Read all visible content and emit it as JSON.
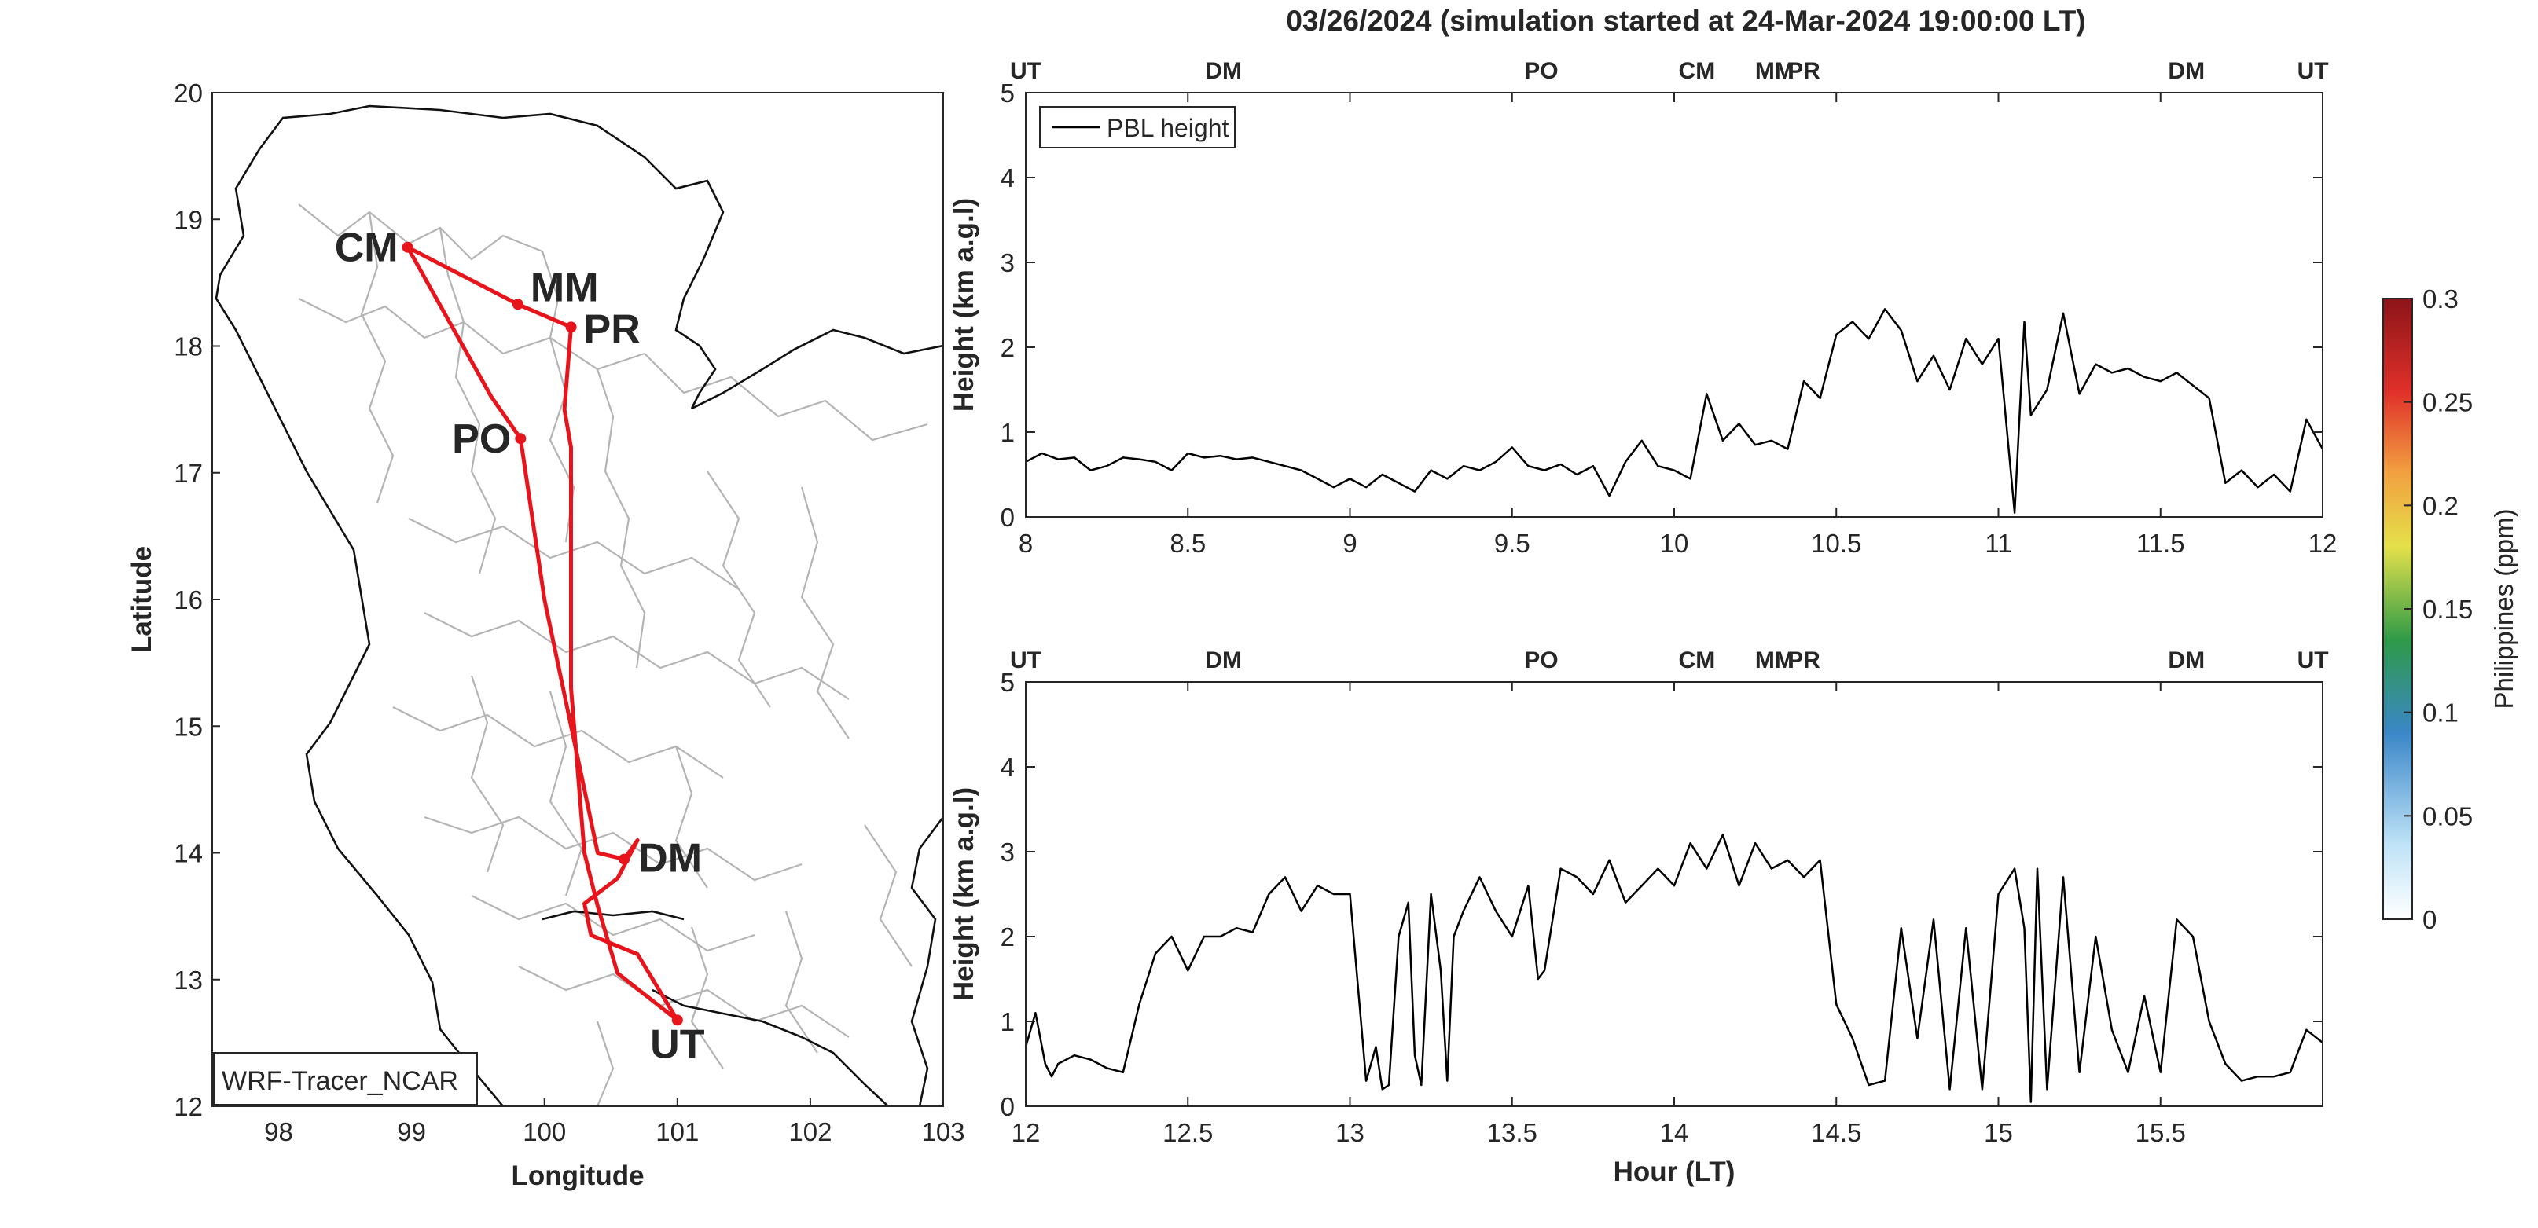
{
  "title": "03/26/2024 (simulation started at 24-Mar-2024 19:00:00 LT)",
  "colors": {
    "route": "#e8141b",
    "UT": "#111111",
    "DM": "#4db8e6",
    "PO": "#77ac30",
    "CM": "#d95319",
    "MM": "#edb120",
    "PR": "#7e2f8e",
    "pbl_line": "#000000",
    "border": "#111111",
    "province_border": "#b0b0b0"
  },
  "icons": {
    "legend_line": "line-icon",
    "map_marker": "circle-dot-icon"
  },
  "chart_data": [
    {
      "type": "map",
      "xlabel": "Longitude",
      "ylabel": "Latitude",
      "xlim": [
        97.5,
        103
      ],
      "ylim": [
        12,
        20
      ],
      "xticks": [
        "98",
        "99",
        "100",
        "101",
        "102",
        "103"
      ],
      "yticks": [
        "12",
        "13",
        "14",
        "15",
        "16",
        "17",
        "18",
        "19",
        "20"
      ],
      "label_box": "WRF-Tracer_NCAR",
      "sites": [
        {
          "name": "CM",
          "lon": 98.97,
          "lat": 18.78
        },
        {
          "name": "MM",
          "lon": 99.8,
          "lat": 18.33
        },
        {
          "name": "PR",
          "lon": 100.2,
          "lat": 18.15
        },
        {
          "name": "PO",
          "lon": 99.82,
          "lat": 17.27
        },
        {
          "name": "DM",
          "lon": 100.6,
          "lat": 13.95
        },
        {
          "name": "UT",
          "lon": 101.0,
          "lat": 12.68
        }
      ],
      "route": [
        {
          "lon": 101.0,
          "lat": 12.68
        },
        {
          "lon": 100.55,
          "lat": 13.05
        },
        {
          "lon": 100.4,
          "lat": 13.58
        },
        {
          "lon": 100.3,
          "lat": 14.0
        },
        {
          "lon": 100.2,
          "lat": 15.3
        },
        {
          "lon": 100.2,
          "lat": 16.5
        },
        {
          "lon": 100.2,
          "lat": 17.2
        },
        {
          "lon": 100.15,
          "lat": 17.5
        },
        {
          "lon": 100.2,
          "lat": 18.15
        },
        {
          "lon": 99.8,
          "lat": 18.33
        },
        {
          "lon": 98.97,
          "lat": 18.78
        },
        {
          "lon": 99.6,
          "lat": 17.6
        },
        {
          "lon": 99.82,
          "lat": 17.27
        },
        {
          "lon": 100.0,
          "lat": 16.0
        },
        {
          "lon": 100.3,
          "lat": 14.5
        },
        {
          "lon": 100.4,
          "lat": 14.0
        },
        {
          "lon": 100.6,
          "lat": 13.95
        },
        {
          "lon": 100.7,
          "lat": 14.1
        },
        {
          "lon": 100.55,
          "lat": 13.8
        },
        {
          "lon": 100.3,
          "lat": 13.6
        },
        {
          "lon": 100.35,
          "lat": 13.35
        },
        {
          "lon": 100.7,
          "lat": 13.2
        },
        {
          "lon": 101.0,
          "lat": 12.68
        }
      ]
    },
    {
      "type": "line",
      "ylabel": "Height (km a.g.l)",
      "xlim": [
        8,
        12
      ],
      "ylim": [
        0,
        5
      ],
      "xticks": [
        "8",
        "8.5",
        "9",
        "9.5",
        "10",
        "10.5",
        "11",
        "11.5",
        "12"
      ],
      "yticks": [
        "0",
        "1",
        "2",
        "3",
        "4",
        "5"
      ],
      "legend": "PBL height",
      "legend_position": "top-left",
      "top_labels": [
        {
          "text": "UT",
          "x": 8.0
        },
        {
          "text": "DM",
          "x": 8.61
        },
        {
          "text": "PO",
          "x": 9.59
        },
        {
          "text": "CM",
          "x": 10.07
        },
        {
          "text": "MM",
          "x": 10.31
        },
        {
          "text": "PR",
          "x": 10.4
        },
        {
          "text": "DM",
          "x": 11.58
        },
        {
          "text": "UT",
          "x": 11.97
        }
      ],
      "series": [
        {
          "name": "PBL height",
          "x": [
            8.0,
            8.05,
            8.1,
            8.15,
            8.2,
            8.25,
            8.3,
            8.35,
            8.4,
            8.45,
            8.5,
            8.55,
            8.6,
            8.65,
            8.7,
            8.75,
            8.8,
            8.85,
            8.9,
            8.95,
            9.0,
            9.05,
            9.1,
            9.15,
            9.2,
            9.25,
            9.3,
            9.35,
            9.4,
            9.45,
            9.5,
            9.55,
            9.6,
            9.65,
            9.7,
            9.75,
            9.8,
            9.85,
            9.9,
            9.95,
            10.0,
            10.05,
            10.1,
            10.15,
            10.2,
            10.25,
            10.3,
            10.35,
            10.4,
            10.45,
            10.5,
            10.55,
            10.6,
            10.65,
            10.7,
            10.75,
            10.8,
            10.85,
            10.9,
            10.95,
            11.0,
            11.05,
            11.08,
            11.1,
            11.15,
            11.2,
            11.25,
            11.3,
            11.35,
            11.4,
            11.45,
            11.5,
            11.55,
            11.6,
            11.65,
            11.7,
            11.75,
            11.8,
            11.85,
            11.9,
            11.95,
            12.0
          ],
          "values": [
            0.65,
            0.75,
            0.68,
            0.7,
            0.55,
            0.6,
            0.7,
            0.68,
            0.65,
            0.55,
            0.75,
            0.7,
            0.72,
            0.68,
            0.7,
            0.65,
            0.6,
            0.55,
            0.45,
            0.35,
            0.45,
            0.35,
            0.5,
            0.4,
            0.3,
            0.55,
            0.45,
            0.6,
            0.55,
            0.65,
            0.82,
            0.6,
            0.55,
            0.62,
            0.5,
            0.6,
            0.25,
            0.65,
            0.9,
            0.6,
            0.55,
            0.45,
            1.45,
            0.9,
            1.1,
            0.85,
            0.9,
            0.8,
            1.6,
            1.4,
            2.15,
            2.3,
            2.1,
            2.45,
            2.2,
            1.6,
            1.9,
            1.5,
            2.1,
            1.8,
            2.1,
            0.05,
            2.3,
            1.2,
            1.5,
            2.4,
            1.45,
            1.8,
            1.7,
            1.75,
            1.65,
            1.6,
            1.7,
            1.55,
            1.4,
            0.4,
            0.55,
            0.35,
            0.5,
            0.3,
            1.15,
            0.8
          ]
        }
      ]
    },
    {
      "type": "line",
      "ylabel": "Height (km a.g.l)",
      "xlabel": "Hour (LT)",
      "xlim": [
        12,
        16
      ],
      "ylim": [
        0,
        5
      ],
      "xticks": [
        "12",
        "12.5",
        "13",
        "13.5",
        "14",
        "14.5",
        "15",
        "15.5"
      ],
      "yticks": [
        "0",
        "1",
        "2",
        "3",
        "4",
        "5"
      ],
      "top_labels": [
        {
          "text": "UT",
          "x": 12.0
        },
        {
          "text": "DM",
          "x": 12.61
        },
        {
          "text": "PO",
          "x": 13.59
        },
        {
          "text": "CM",
          "x": 14.07
        },
        {
          "text": "MM",
          "x": 14.31
        },
        {
          "text": "PR",
          "x": 14.4
        },
        {
          "text": "DM",
          "x": 15.58
        },
        {
          "text": "UT",
          "x": 15.97
        }
      ],
      "series": [
        {
          "name": "PBL height",
          "x": [
            12.0,
            12.03,
            12.06,
            12.08,
            12.1,
            12.15,
            12.2,
            12.25,
            12.3,
            12.35,
            12.4,
            12.45,
            12.5,
            12.55,
            12.6,
            12.65,
            12.7,
            12.75,
            12.8,
            12.85,
            12.9,
            12.95,
            13.0,
            13.05,
            13.08,
            13.1,
            13.12,
            13.15,
            13.18,
            13.2,
            13.22,
            13.25,
            13.28,
            13.3,
            13.32,
            13.35,
            13.4,
            13.45,
            13.5,
            13.55,
            13.58,
            13.6,
            13.65,
            13.7,
            13.75,
            13.8,
            13.85,
            13.9,
            13.95,
            14.0,
            14.05,
            14.1,
            14.15,
            14.2,
            14.25,
            14.3,
            14.35,
            14.4,
            14.45,
            14.5,
            14.55,
            14.6,
            14.65,
            14.7,
            14.75,
            14.8,
            14.85,
            14.9,
            14.95,
            15.0,
            15.05,
            15.08,
            15.1,
            15.12,
            15.15,
            15.2,
            15.25,
            15.3,
            15.35,
            15.4,
            15.45,
            15.5,
            15.55,
            15.6,
            15.65,
            15.7,
            15.75,
            15.8,
            15.85,
            15.9,
            15.95,
            16.0
          ],
          "values": [
            0.7,
            1.1,
            0.5,
            0.35,
            0.5,
            0.6,
            0.55,
            0.45,
            0.4,
            1.2,
            1.8,
            2.0,
            1.6,
            2.0,
            2.0,
            2.1,
            2.05,
            2.5,
            2.7,
            2.3,
            2.6,
            2.5,
            2.5,
            0.3,
            0.7,
            0.2,
            0.25,
            2.0,
            2.4,
            0.6,
            0.25,
            2.5,
            1.6,
            0.3,
            2.0,
            2.3,
            2.7,
            2.3,
            2.0,
            2.6,
            1.5,
            1.6,
            2.8,
            2.7,
            2.5,
            2.9,
            2.4,
            2.6,
            2.8,
            2.6,
            3.1,
            2.8,
            3.2,
            2.6,
            3.1,
            2.8,
            2.9,
            2.7,
            2.9,
            1.2,
            0.8,
            0.25,
            0.3,
            2.1,
            0.8,
            2.2,
            0.2,
            2.1,
            0.2,
            2.5,
            2.8,
            2.1,
            0.05,
            2.8,
            0.2,
            2.7,
            0.4,
            2.0,
            0.9,
            0.4,
            1.3,
            0.4,
            2.2,
            2.0,
            1.0,
            0.5,
            0.3,
            0.35,
            0.35,
            0.4,
            0.9,
            0.75
          ]
        }
      ]
    },
    {
      "type": "colorbar",
      "label": "Philippines (ppm)",
      "range": [
        0,
        0.3
      ],
      "ticks": [
        "0",
        "0.05",
        "0.1",
        "0.15",
        "0.2",
        "0.25",
        "0.3"
      ]
    }
  ]
}
